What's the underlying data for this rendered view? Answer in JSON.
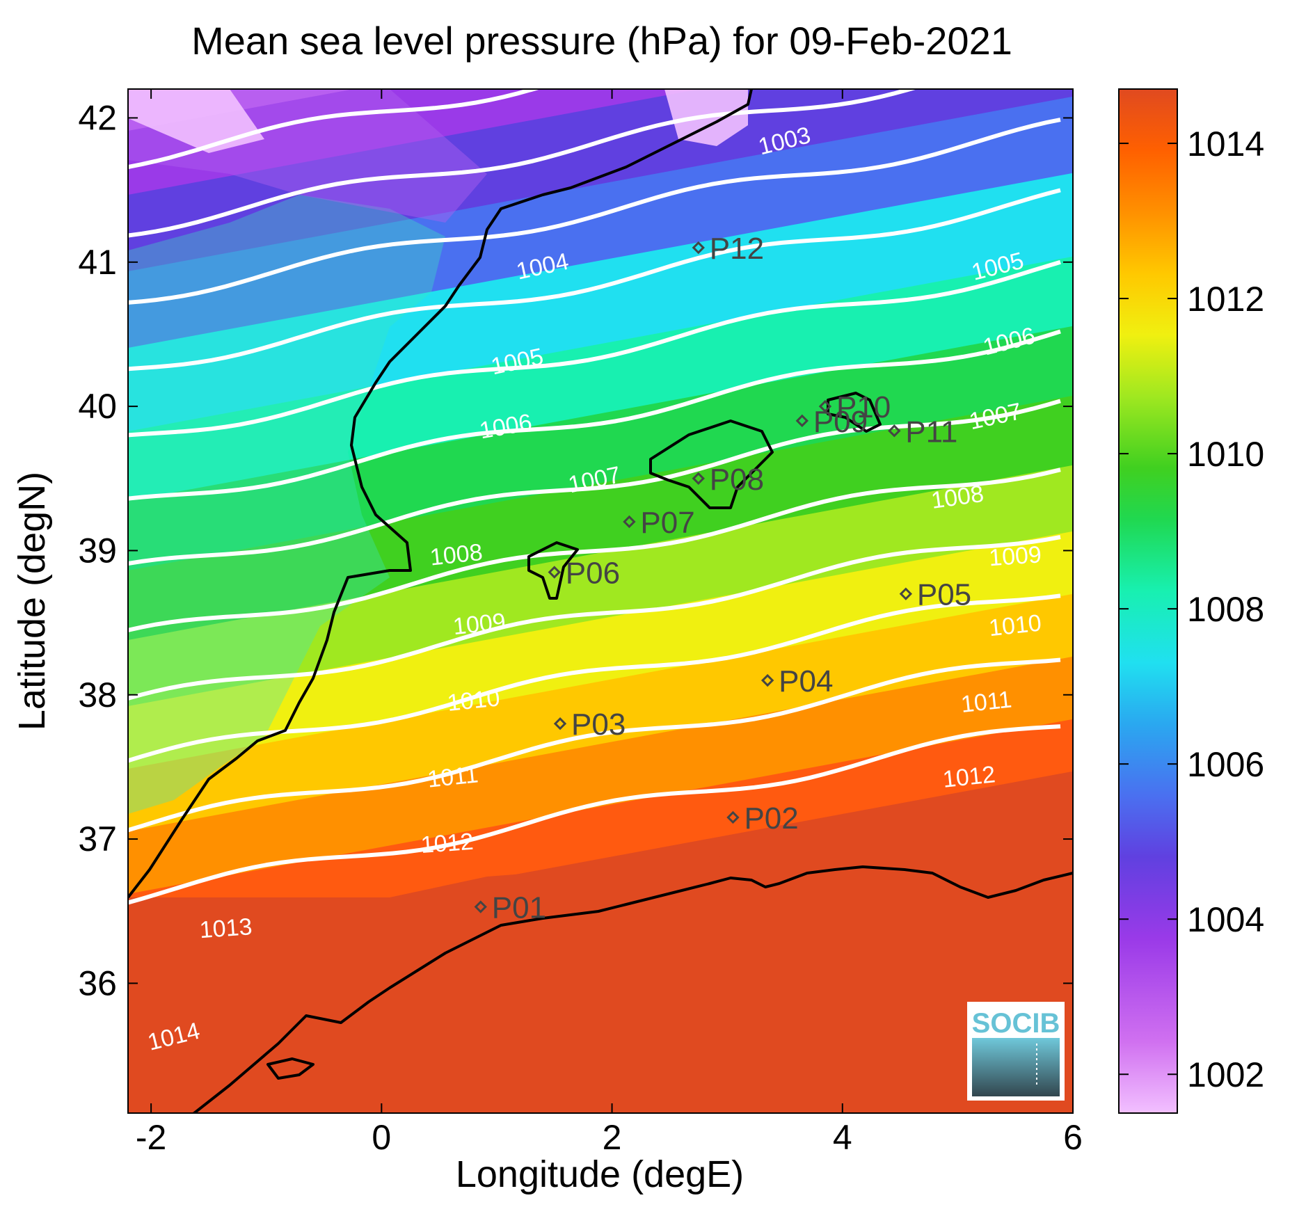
{
  "title": "Mean sea level pressure (hPa) for 09-Feb-2021",
  "xlabel": "Longitude (degE)",
  "ylabel": "Latitude (degN)",
  "logo_text": "SOCIB",
  "x_ticks": [
    "-2",
    "0",
    "2",
    "4",
    "6"
  ],
  "y_ticks": [
    "42",
    "41",
    "40",
    "39",
    "38",
    "37",
    "36"
  ],
  "colorbar_ticks": [
    "1014",
    "1012",
    "1010",
    "1008",
    "1006",
    "1004",
    "1002"
  ],
  "colorbar_range": [
    1001.5,
    1014.7
  ],
  "map_extent": {
    "lon": [
      -2.2,
      6.0
    ],
    "lat": [
      35.1,
      42.2
    ]
  },
  "contour_labels": [
    {
      "text": "1003",
      "lon": 3.5,
      "lat": 41.83,
      "rot": -14
    },
    {
      "text": "1004",
      "lon": 1.4,
      "lat": 40.96,
      "rot": -12
    },
    {
      "text": "1005",
      "lon": 5.35,
      "lat": 40.96,
      "rot": -14
    },
    {
      "text": "1005",
      "lon": 1.18,
      "lat": 40.3,
      "rot": -12
    },
    {
      "text": "1006",
      "lon": 5.45,
      "lat": 40.44,
      "rot": -14
    },
    {
      "text": "1006",
      "lon": 1.08,
      "lat": 39.85,
      "rot": -10
    },
    {
      "text": "1007",
      "lon": 5.33,
      "lat": 39.92,
      "rot": -12
    },
    {
      "text": "1007",
      "lon": 1.85,
      "lat": 39.48,
      "rot": -12
    },
    {
      "text": "1008",
      "lon": 5.0,
      "lat": 39.36,
      "rot": -8
    },
    {
      "text": "1008",
      "lon": 0.65,
      "lat": 38.96,
      "rot": -6
    },
    {
      "text": "1009",
      "lon": 5.5,
      "lat": 38.95,
      "rot": -4
    },
    {
      "text": "1009",
      "lon": 0.85,
      "lat": 38.48,
      "rot": -6
    },
    {
      "text": "1010",
      "lon": 5.5,
      "lat": 38.47,
      "rot": -6
    },
    {
      "text": "1010",
      "lon": 0.8,
      "lat": 37.95,
      "rot": -6
    },
    {
      "text": "1011",
      "lon": 5.25,
      "lat": 37.94,
      "rot": -6
    },
    {
      "text": "1011",
      "lon": 0.62,
      "lat": 37.42,
      "rot": -6
    },
    {
      "text": "1012",
      "lon": 5.1,
      "lat": 37.42,
      "rot": -6
    },
    {
      "text": "1012",
      "lon": 0.57,
      "lat": 36.96,
      "rot": -4
    },
    {
      "text": "1013",
      "lon": -1.35,
      "lat": 36.37,
      "rot": -4
    },
    {
      "text": "1014",
      "lon": -1.8,
      "lat": 35.62,
      "rot": -14
    }
  ],
  "stations": [
    {
      "name": "P01",
      "lon": 0.86,
      "lat": 36.53
    },
    {
      "name": "P02",
      "lon": 3.05,
      "lat": 37.15
    },
    {
      "name": "P03",
      "lon": 1.55,
      "lat": 37.8
    },
    {
      "name": "P04",
      "lon": 3.35,
      "lat": 38.1
    },
    {
      "name": "P05",
      "lon": 4.55,
      "lat": 38.7
    },
    {
      "name": "P06",
      "lon": 1.5,
      "lat": 38.85
    },
    {
      "name": "P07",
      "lon": 2.15,
      "lat": 39.2
    },
    {
      "name": "P08",
      "lon": 2.75,
      "lat": 39.5
    },
    {
      "name": "P09",
      "lon": 3.65,
      "lat": 39.9
    },
    {
      "name": "P10",
      "lon": 3.85,
      "lat": 40.0
    },
    {
      "name": "P11",
      "lon": 4.45,
      "lat": 39.83
    },
    {
      "name": "P12",
      "lon": 2.75,
      "lat": 41.1
    }
  ],
  "colors": {
    "contour": "#ffffff",
    "coastline": "#000000",
    "station_marker": "#444444",
    "logo_blue": "#66c2d6",
    "logo_dark": "#3a5560"
  }
}
